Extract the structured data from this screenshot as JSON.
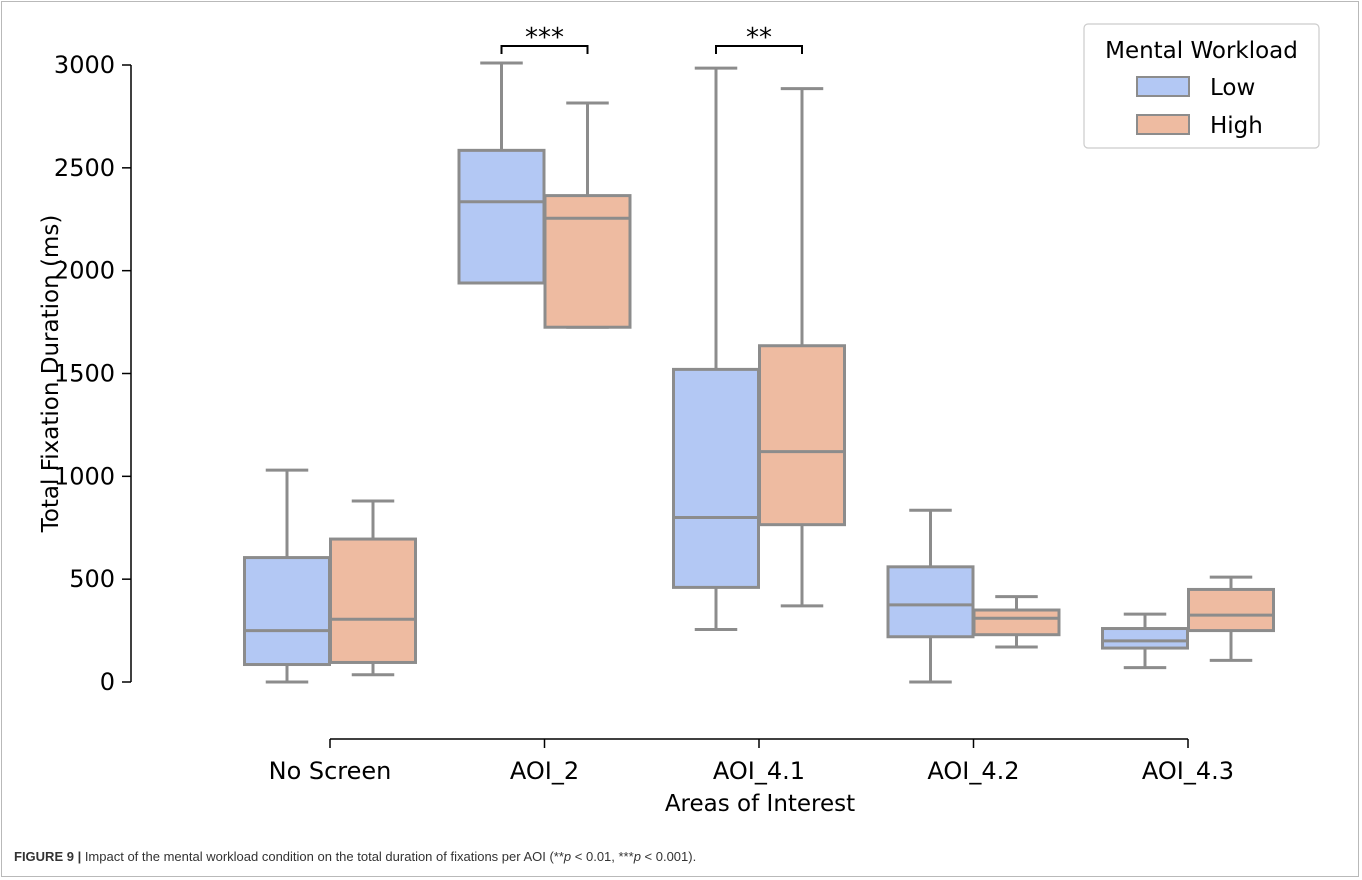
{
  "chart_data": {
    "type": "box",
    "xlabel": "Areas of Interest",
    "ylabel": "Total Fixation Duration (ms)",
    "ylim": [
      -280,
      3080
    ],
    "yticks": [
      0,
      500,
      1000,
      1500,
      2000,
      2500,
      3000
    ],
    "ytick_labels": [
      "0",
      "500",
      "1000",
      "1500",
      "2000",
      "2500",
      "3000"
    ],
    "categories": [
      "No Screen",
      "AOI_2",
      "AOI_4.1",
      "AOI_4.2",
      "AOI_4.3"
    ],
    "legend": {
      "title": "Mental Workload",
      "position": "top-right"
    },
    "series": [
      {
        "name": "Low",
        "color": "#b3c8f4",
        "boxes": [
          {
            "whisker_low": 0,
            "q1": 85,
            "median": 250,
            "q3": 605,
            "whisker_high": 1030
          },
          {
            "whisker_low": 1940,
            "q1": 1940,
            "median": 2335,
            "q3": 2585,
            "whisker_high": 3010
          },
          {
            "whisker_low": 255,
            "q1": 460,
            "median": 800,
            "q3": 1520,
            "whisker_high": 2985
          },
          {
            "whisker_low": 0,
            "q1": 220,
            "median": 375,
            "q3": 560,
            "whisker_high": 835
          },
          {
            "whisker_low": 70,
            "q1": 165,
            "median": 200,
            "q3": 260,
            "whisker_high": 330
          }
        ]
      },
      {
        "name": "High",
        "color": "#eebba1",
        "boxes": [
          {
            "whisker_low": 35,
            "q1": 95,
            "median": 305,
            "q3": 695,
            "whisker_high": 880
          },
          {
            "whisker_low": 1725,
            "q1": 1725,
            "median": 2255,
            "q3": 2365,
            "whisker_high": 2815
          },
          {
            "whisker_low": 370,
            "q1": 765,
            "median": 1120,
            "q3": 1635,
            "whisker_high": 2885
          },
          {
            "whisker_low": 170,
            "q1": 230,
            "median": 310,
            "q3": 350,
            "whisker_high": 415
          },
          {
            "whisker_low": 105,
            "q1": 250,
            "median": 325,
            "q3": 450,
            "whisker_high": 510
          }
        ]
      }
    ],
    "significance": [
      {
        "category": "AOI_2",
        "label": "***"
      },
      {
        "category": "AOI_4.1",
        "label": "**"
      }
    ],
    "box_edge_color": "#8c8c8c"
  },
  "caption": {
    "figure_label": "FIGURE 9 |",
    "text_before": " Impact of the mental workload condition on the total duration of fixations per AOI (**",
    "p1": "p",
    "mid1": " < 0.01, ***",
    "p2": "p",
    "text_after": " < 0.001)."
  }
}
